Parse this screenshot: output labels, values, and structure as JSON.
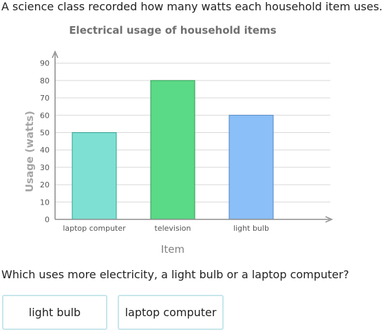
{
  "intro_text": "A science class recorded how many watts each household item uses.",
  "question_text": "Which uses more electricity, a light bulb or a laptop computer?",
  "choices": [
    "light bulb",
    "laptop computer"
  ],
  "chart_data": {
    "type": "bar",
    "title": "Electrical usage of household items",
    "xlabel": "Item",
    "ylabel": "Usage (watts)",
    "categories": [
      "laptop computer",
      "television",
      "light bulb"
    ],
    "values": [
      50,
      80,
      60
    ],
    "ylim": [
      0,
      90
    ],
    "yticks": [
      "0",
      "10",
      "20",
      "30",
      "40",
      "50",
      "60",
      "70",
      "80",
      "90"
    ],
    "grid": true,
    "bar_colors": [
      "#7ee0d3",
      "#5ad986",
      "#8bbff7"
    ],
    "bar_edge_colors": [
      "#2e9f91",
      "#2c9d55",
      "#4f86c6"
    ]
  }
}
